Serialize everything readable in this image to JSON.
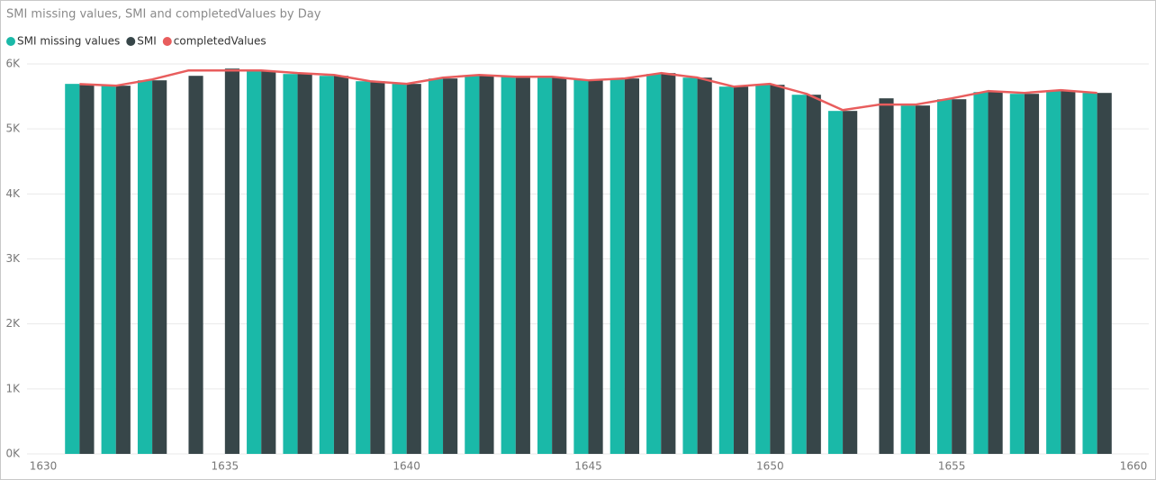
{
  "chart_data": {
    "type": "bar-line",
    "title": "SMI missing values, SMI and completedValues by Day",
    "x": [
      1631,
      1632,
      1633,
      1634,
      1635,
      1636,
      1637,
      1638,
      1639,
      1640,
      1641,
      1642,
      1643,
      1644,
      1645,
      1646,
      1647,
      1648,
      1649,
      1650,
      1651,
      1652,
      1653,
      1654,
      1655,
      1656,
      1657,
      1658,
      1659
    ],
    "series": [
      {
        "name": "SMI missing values",
        "color": "#1ab9a8",
        "kind": "bar",
        "values": [
          5693,
          5665,
          5748,
          null,
          null,
          5900,
          5845,
          5817,
          5734,
          5693,
          5776,
          5817,
          5817,
          5789,
          5762,
          5776,
          5845,
          5789,
          5651,
          5679,
          5526,
          5277,
          null,
          5360,
          5457,
          5568,
          5540,
          5582,
          5554
        ]
      },
      {
        "name": "SMI",
        "color": "#374649",
        "kind": "bar",
        "values": [
          5679,
          5665,
          5748,
          5817,
          5928,
          5886,
          5845,
          5817,
          5734,
          5693,
          5776,
          5817,
          5817,
          5789,
          5762,
          5776,
          5859,
          5789,
          5651,
          5679,
          5526,
          5277,
          5471,
          5360,
          5457,
          5568,
          5540,
          5582,
          5554
        ]
      },
      {
        "name": "completedValues",
        "color": "#e85d5d",
        "kind": "line",
        "values": [
          5690,
          5665,
          5762,
          5900,
          5900,
          5900,
          5859,
          5831,
          5734,
          5693,
          5789,
          5831,
          5803,
          5803,
          5748,
          5776,
          5859,
          5790,
          5651,
          5693,
          5540,
          5290,
          5374,
          5374,
          5471,
          5582,
          5554,
          5596,
          5554
        ]
      }
    ],
    "xlim": [
      1630,
      1660
    ],
    "xticks": [
      1630,
      1635,
      1640,
      1645,
      1650,
      1655,
      1660
    ],
    "ylim": [
      0,
      6000
    ],
    "yticks": [
      {
        "value": 0,
        "label": "0K"
      },
      {
        "value": 1000,
        "label": "1K"
      },
      {
        "value": 2000,
        "label": "2K"
      },
      {
        "value": 3000,
        "label": "3K"
      },
      {
        "value": 4000,
        "label": "4K"
      },
      {
        "value": 5000,
        "label": "5K"
      },
      {
        "value": 6000,
        "label": "6K"
      }
    ],
    "grid": true
  }
}
